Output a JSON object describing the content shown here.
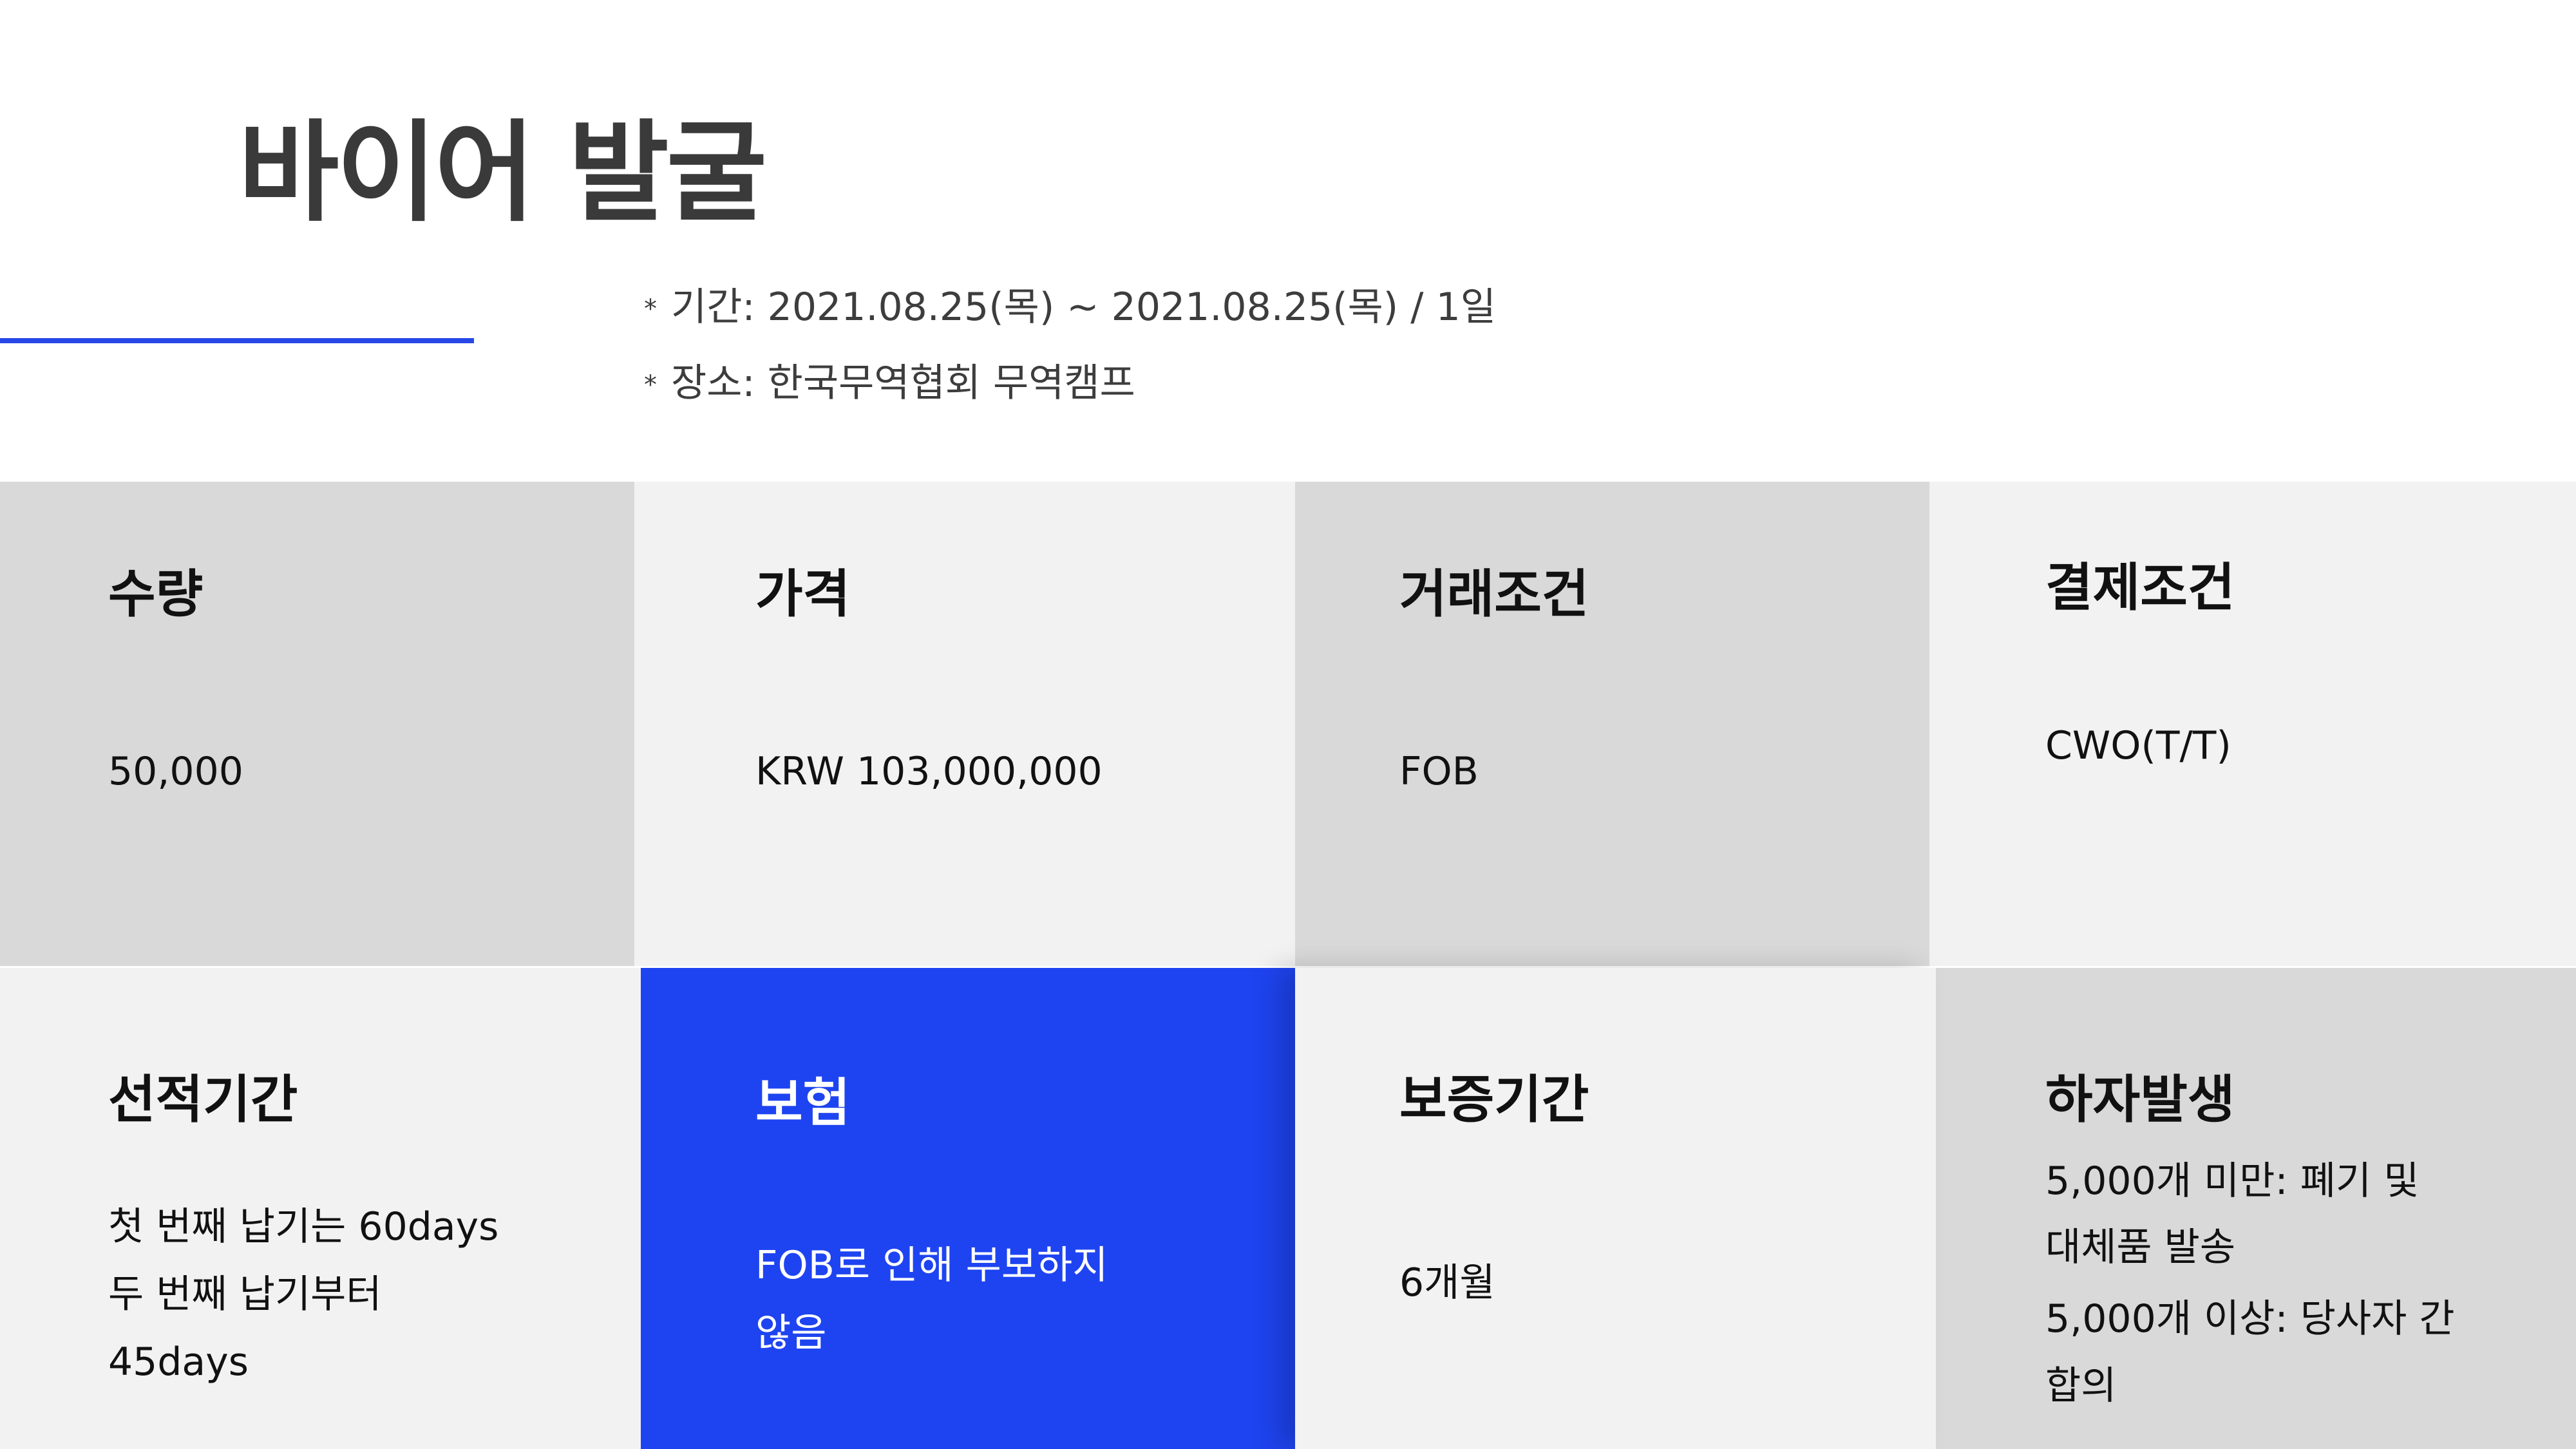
{
  "page_title": "바이어 발굴",
  "meta": {
    "bullet": "*",
    "period": "기간: 2021.08.25(목) ~ 2021.08.25(목) / 1일",
    "place": "장소: 한국무역협회 무역캠프"
  },
  "cells": [
    {
      "title": "수량",
      "value": "50,000"
    },
    {
      "title": "가격",
      "value": "KRW 103,000,000"
    },
    {
      "title": "거래조건",
      "value": "FOB"
    },
    {
      "title": "결제조건",
      "value": "CWO(T/T)"
    },
    {
      "title": "선적기간",
      "lines": [
        "첫 번째 납기는 60days",
        "두 번째 납기부터",
        "45days"
      ]
    },
    {
      "title": "보험",
      "lines": [
        "FOB로 인해 부보하지",
        "않음"
      ]
    },
    {
      "title": "보증기간",
      "value": "6개월"
    },
    {
      "title": "하자발생",
      "lines": [
        "5,000개 미만: 폐기 및",
        "대체품 발송",
        "5,000개 이상: 당사자 간",
        "합의"
      ]
    }
  ],
  "colors": {
    "accent_blue": "#1e44f1",
    "line_blue": "#2747e6",
    "cell_dark": "#d9d9d9",
    "cell_light": "#f2f2f2"
  }
}
